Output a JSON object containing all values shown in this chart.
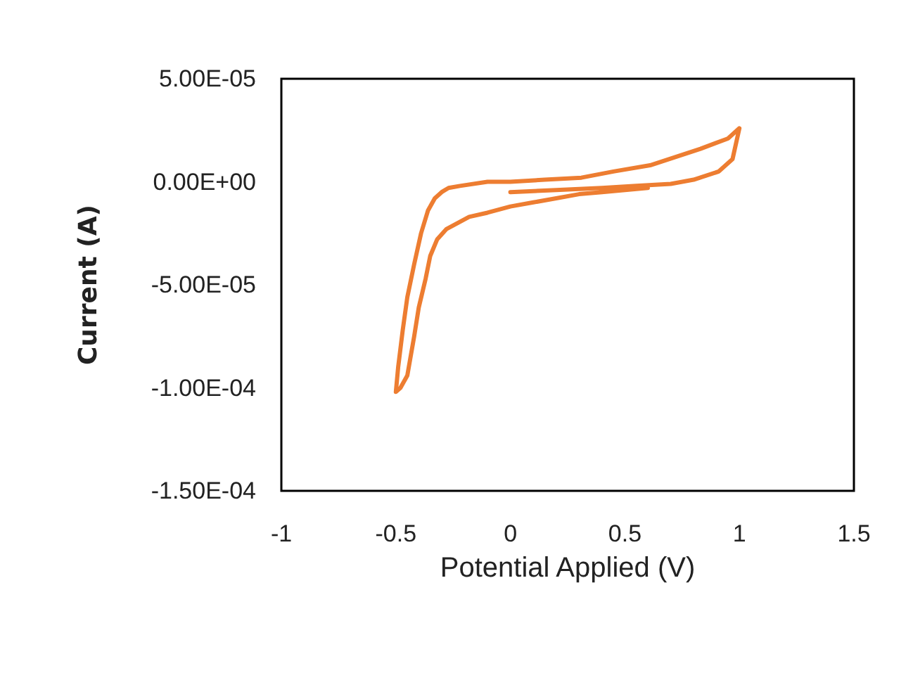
{
  "chart_data": {
    "type": "line",
    "xlabel": "Potential Applied (V)",
    "ylabel": "Current (A)",
    "xlim": [
      -1,
      1.5
    ],
    "xticks": [
      -1,
      -0.5,
      0,
      0.5,
      1,
      1.5
    ],
    "ylim": [
      -0.00015,
      5e-05
    ],
    "yticks": [
      {
        "value": 5e-05,
        "label": "5.00E-05"
      },
      {
        "value": 0,
        "label": "0.00E+00"
      },
      {
        "value": -5e-05,
        "label": "-5.00E-05"
      },
      {
        "value": -0.0001,
        "label": "-1.00E-04"
      },
      {
        "value": -0.00015,
        "label": "-1.50E-04"
      }
    ],
    "grid": false,
    "marker": "none",
    "line_style": "solid",
    "series": [
      {
        "color": "#ed7d31",
        "x": [
          0,
          0.2,
          0.4,
          0.55,
          0.7,
          0.8,
          0.91,
          0.97,
          1.0,
          0.95,
          0.83,
          0.72,
          0.61,
          0.45,
          0.31,
          0.15,
          0,
          -0.1,
          -0.22,
          -0.27,
          -0.3,
          -0.33,
          -0.36,
          -0.39,
          -0.42,
          -0.45,
          -0.47,
          -0.49,
          -0.5,
          -0.48,
          -0.45,
          -0.42,
          -0.4,
          -0.37,
          -0.35,
          -0.32,
          -0.28,
          -0.23,
          -0.18,
          -0.1,
          0,
          0.1,
          0.2,
          0.3,
          0.4,
          0.5,
          0.6
        ],
        "values": [
          -5e-06,
          -4e-06,
          -3e-06,
          -2e-06,
          -1e-06,
          1e-06,
          5e-06,
          1.1e-05,
          2.6e-05,
          2.1e-05,
          1.6e-05,
          1.2e-05,
          8e-06,
          5e-06,
          2e-06,
          1e-06,
          0,
          0,
          -2e-06,
          -3e-06,
          -5e-06,
          -8e-06,
          -1.4e-05,
          -2.5e-05,
          -4e-05,
          -5.6e-05,
          -7.2e-05,
          -9e-05,
          -0.000102,
          -0.0001,
          -9.4e-05,
          -7.5e-05,
          -6.1e-05,
          -4.7e-05,
          -3.6e-05,
          -2.8e-05,
          -2.3e-05,
          -2e-05,
          -1.7e-05,
          -1.5e-05,
          -1.2e-05,
          -1e-05,
          -8e-06,
          -6e-06,
          -5e-06,
          -4e-06,
          -3e-06
        ]
      }
    ]
  }
}
